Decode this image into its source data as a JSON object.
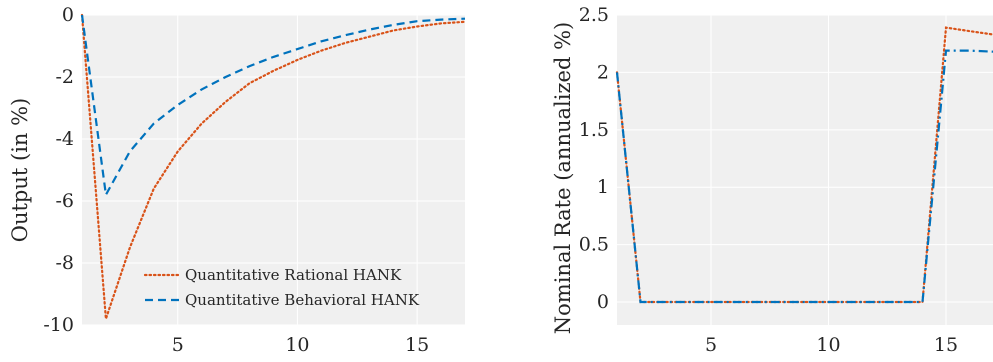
{
  "colors": {
    "rational": "#D95319",
    "behavioral": "#0072BD",
    "plot_bg": "#F0F0F0",
    "grid": "#FFFFFF"
  },
  "chart_data": [
    {
      "type": "line",
      "title": "",
      "xlabel": "",
      "ylabel": "Output (in %)",
      "xlim": [
        1,
        17
      ],
      "ylim": [
        -10,
        0
      ],
      "xticks": [
        5,
        10,
        15
      ],
      "yticks": [
        0,
        -2,
        -4,
        -6,
        -8,
        -10
      ],
      "grid": true,
      "legend_position": "bottom-right",
      "series": [
        {
          "name": "Quantitative Rational HANK",
          "style": "dotted",
          "color": "rational",
          "x": [
            1,
            2,
            3,
            4,
            5,
            6,
            7,
            8,
            9,
            10,
            11,
            12,
            13,
            14,
            15,
            16,
            17
          ],
          "y": [
            0,
            -9.8,
            -7.5,
            -5.6,
            -4.4,
            -3.5,
            -2.8,
            -2.2,
            -1.8,
            -1.45,
            -1.15,
            -0.9,
            -0.7,
            -0.5,
            -0.37,
            -0.27,
            -0.22
          ]
        },
        {
          "name": "Quantitative Behavioral HANK",
          "style": "dashed",
          "color": "behavioral",
          "x": [
            1,
            2,
            3,
            4,
            5,
            6,
            7,
            8,
            9,
            10,
            11,
            12,
            13,
            14,
            15,
            16,
            17
          ],
          "y": [
            0,
            -5.8,
            -4.4,
            -3.5,
            -2.9,
            -2.4,
            -2.0,
            -1.65,
            -1.35,
            -1.1,
            -0.85,
            -0.65,
            -0.47,
            -0.32,
            -0.2,
            -0.15,
            -0.12
          ]
        }
      ]
    },
    {
      "type": "line",
      "title": "",
      "xlabel": "",
      "ylabel": "Nominal Rate (annualized %)",
      "xlim": [
        1,
        17
      ],
      "ylim": [
        -0.2,
        2.5
      ],
      "xticks": [
        5,
        10,
        15
      ],
      "yticks": [
        0,
        0.5,
        1,
        1.5,
        2,
        2.5
      ],
      "grid": true,
      "series": [
        {
          "style": "dotted",
          "color": "rational",
          "x": [
            1,
            2,
            3,
            4,
            5,
            6,
            7,
            8,
            9,
            10,
            11,
            12,
            13,
            14,
            15,
            16,
            17
          ],
          "y": [
            2.0,
            0,
            0,
            0,
            0,
            0,
            0,
            0,
            0,
            0,
            0,
            0,
            0,
            0,
            2.39,
            2.36,
            2.33
          ]
        },
        {
          "style": "dashdot",
          "color": "behavioral",
          "x": [
            1,
            2,
            3,
            4,
            5,
            6,
            7,
            8,
            9,
            10,
            11,
            12,
            13,
            14,
            15,
            16,
            17
          ],
          "y": [
            2.0,
            0,
            0,
            0,
            0,
            0,
            0,
            0,
            0,
            0,
            0,
            0,
            0,
            0,
            2.19,
            2.19,
            2.18
          ]
        }
      ]
    }
  ]
}
